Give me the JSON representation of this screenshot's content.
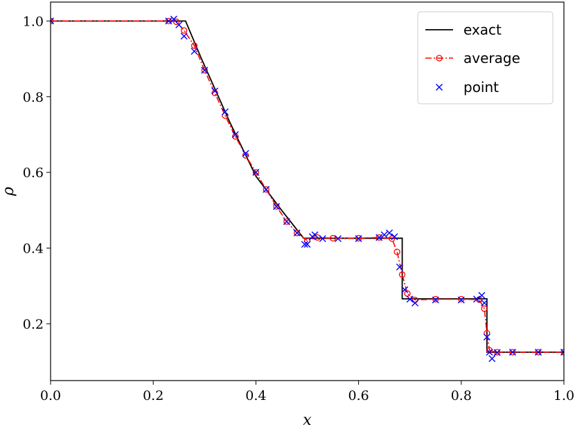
{
  "chart_data": {
    "type": "line",
    "title": "",
    "xlabel": "x",
    "ylabel": "ρ",
    "xlim": [
      0.0,
      1.0
    ],
    "ylim": [
      0.05,
      1.05
    ],
    "xticks": [
      "0.0",
      "0.2",
      "0.4",
      "0.6",
      "0.8",
      "1.0"
    ],
    "yticks": [
      "0.2",
      "0.4",
      "0.6",
      "0.8",
      "1.0"
    ],
    "grid": false,
    "legend_position": "top-right",
    "series": [
      {
        "name": "exact",
        "style": "solid",
        "color": "#000000",
        "x": [
          0.0,
          0.263,
          0.294,
          0.35,
          0.4,
          0.45,
          0.493,
          0.685,
          0.685,
          0.85,
          0.85,
          1.0
        ],
        "y": [
          1.0,
          1.0,
          0.9,
          0.73,
          0.59,
          0.5,
          0.426,
          0.426,
          0.266,
          0.266,
          0.125,
          0.125
        ]
      },
      {
        "name": "average",
        "style": "dashdot-circle",
        "color": "#ff0000",
        "x": [
          0.0,
          0.23,
          0.245,
          0.26,
          0.28,
          0.3,
          0.32,
          0.34,
          0.36,
          0.38,
          0.4,
          0.42,
          0.44,
          0.46,
          0.48,
          0.5,
          0.52,
          0.55,
          0.6,
          0.64,
          0.665,
          0.675,
          0.685,
          0.695,
          0.71,
          0.75,
          0.8,
          0.835,
          0.845,
          0.85,
          0.855,
          0.87,
          0.9,
          0.95,
          1.0
        ],
        "y": [
          1.0,
          1.0,
          0.998,
          0.975,
          0.935,
          0.87,
          0.81,
          0.75,
          0.695,
          0.645,
          0.6,
          0.555,
          0.51,
          0.47,
          0.44,
          0.42,
          0.428,
          0.426,
          0.426,
          0.428,
          0.425,
          0.39,
          0.33,
          0.28,
          0.263,
          0.265,
          0.265,
          0.264,
          0.24,
          0.175,
          0.13,
          0.125,
          0.125,
          0.125,
          0.125
        ]
      },
      {
        "name": "point",
        "style": "x-marker",
        "color": "#0000ff",
        "x": [
          0.0,
          0.23,
          0.24,
          0.25,
          0.26,
          0.28,
          0.3,
          0.32,
          0.34,
          0.36,
          0.38,
          0.4,
          0.42,
          0.44,
          0.46,
          0.48,
          0.495,
          0.5,
          0.51,
          0.515,
          0.53,
          0.56,
          0.6,
          0.64,
          0.65,
          0.66,
          0.67,
          0.68,
          0.69,
          0.7,
          0.71,
          0.75,
          0.8,
          0.83,
          0.84,
          0.845,
          0.85,
          0.855,
          0.86,
          0.87,
          0.9,
          0.95,
          1.0
        ],
        "y": [
          1.0,
          1.0,
          1.005,
          0.99,
          0.96,
          0.92,
          0.87,
          0.815,
          0.76,
          0.7,
          0.65,
          0.6,
          0.555,
          0.51,
          0.47,
          0.44,
          0.41,
          0.41,
          0.43,
          0.435,
          0.425,
          0.425,
          0.425,
          0.428,
          0.435,
          0.44,
          0.43,
          0.35,
          0.29,
          0.265,
          0.255,
          0.263,
          0.263,
          0.265,
          0.275,
          0.255,
          0.165,
          0.125,
          0.108,
          0.124,
          0.125,
          0.125,
          0.125
        ]
      }
    ]
  }
}
